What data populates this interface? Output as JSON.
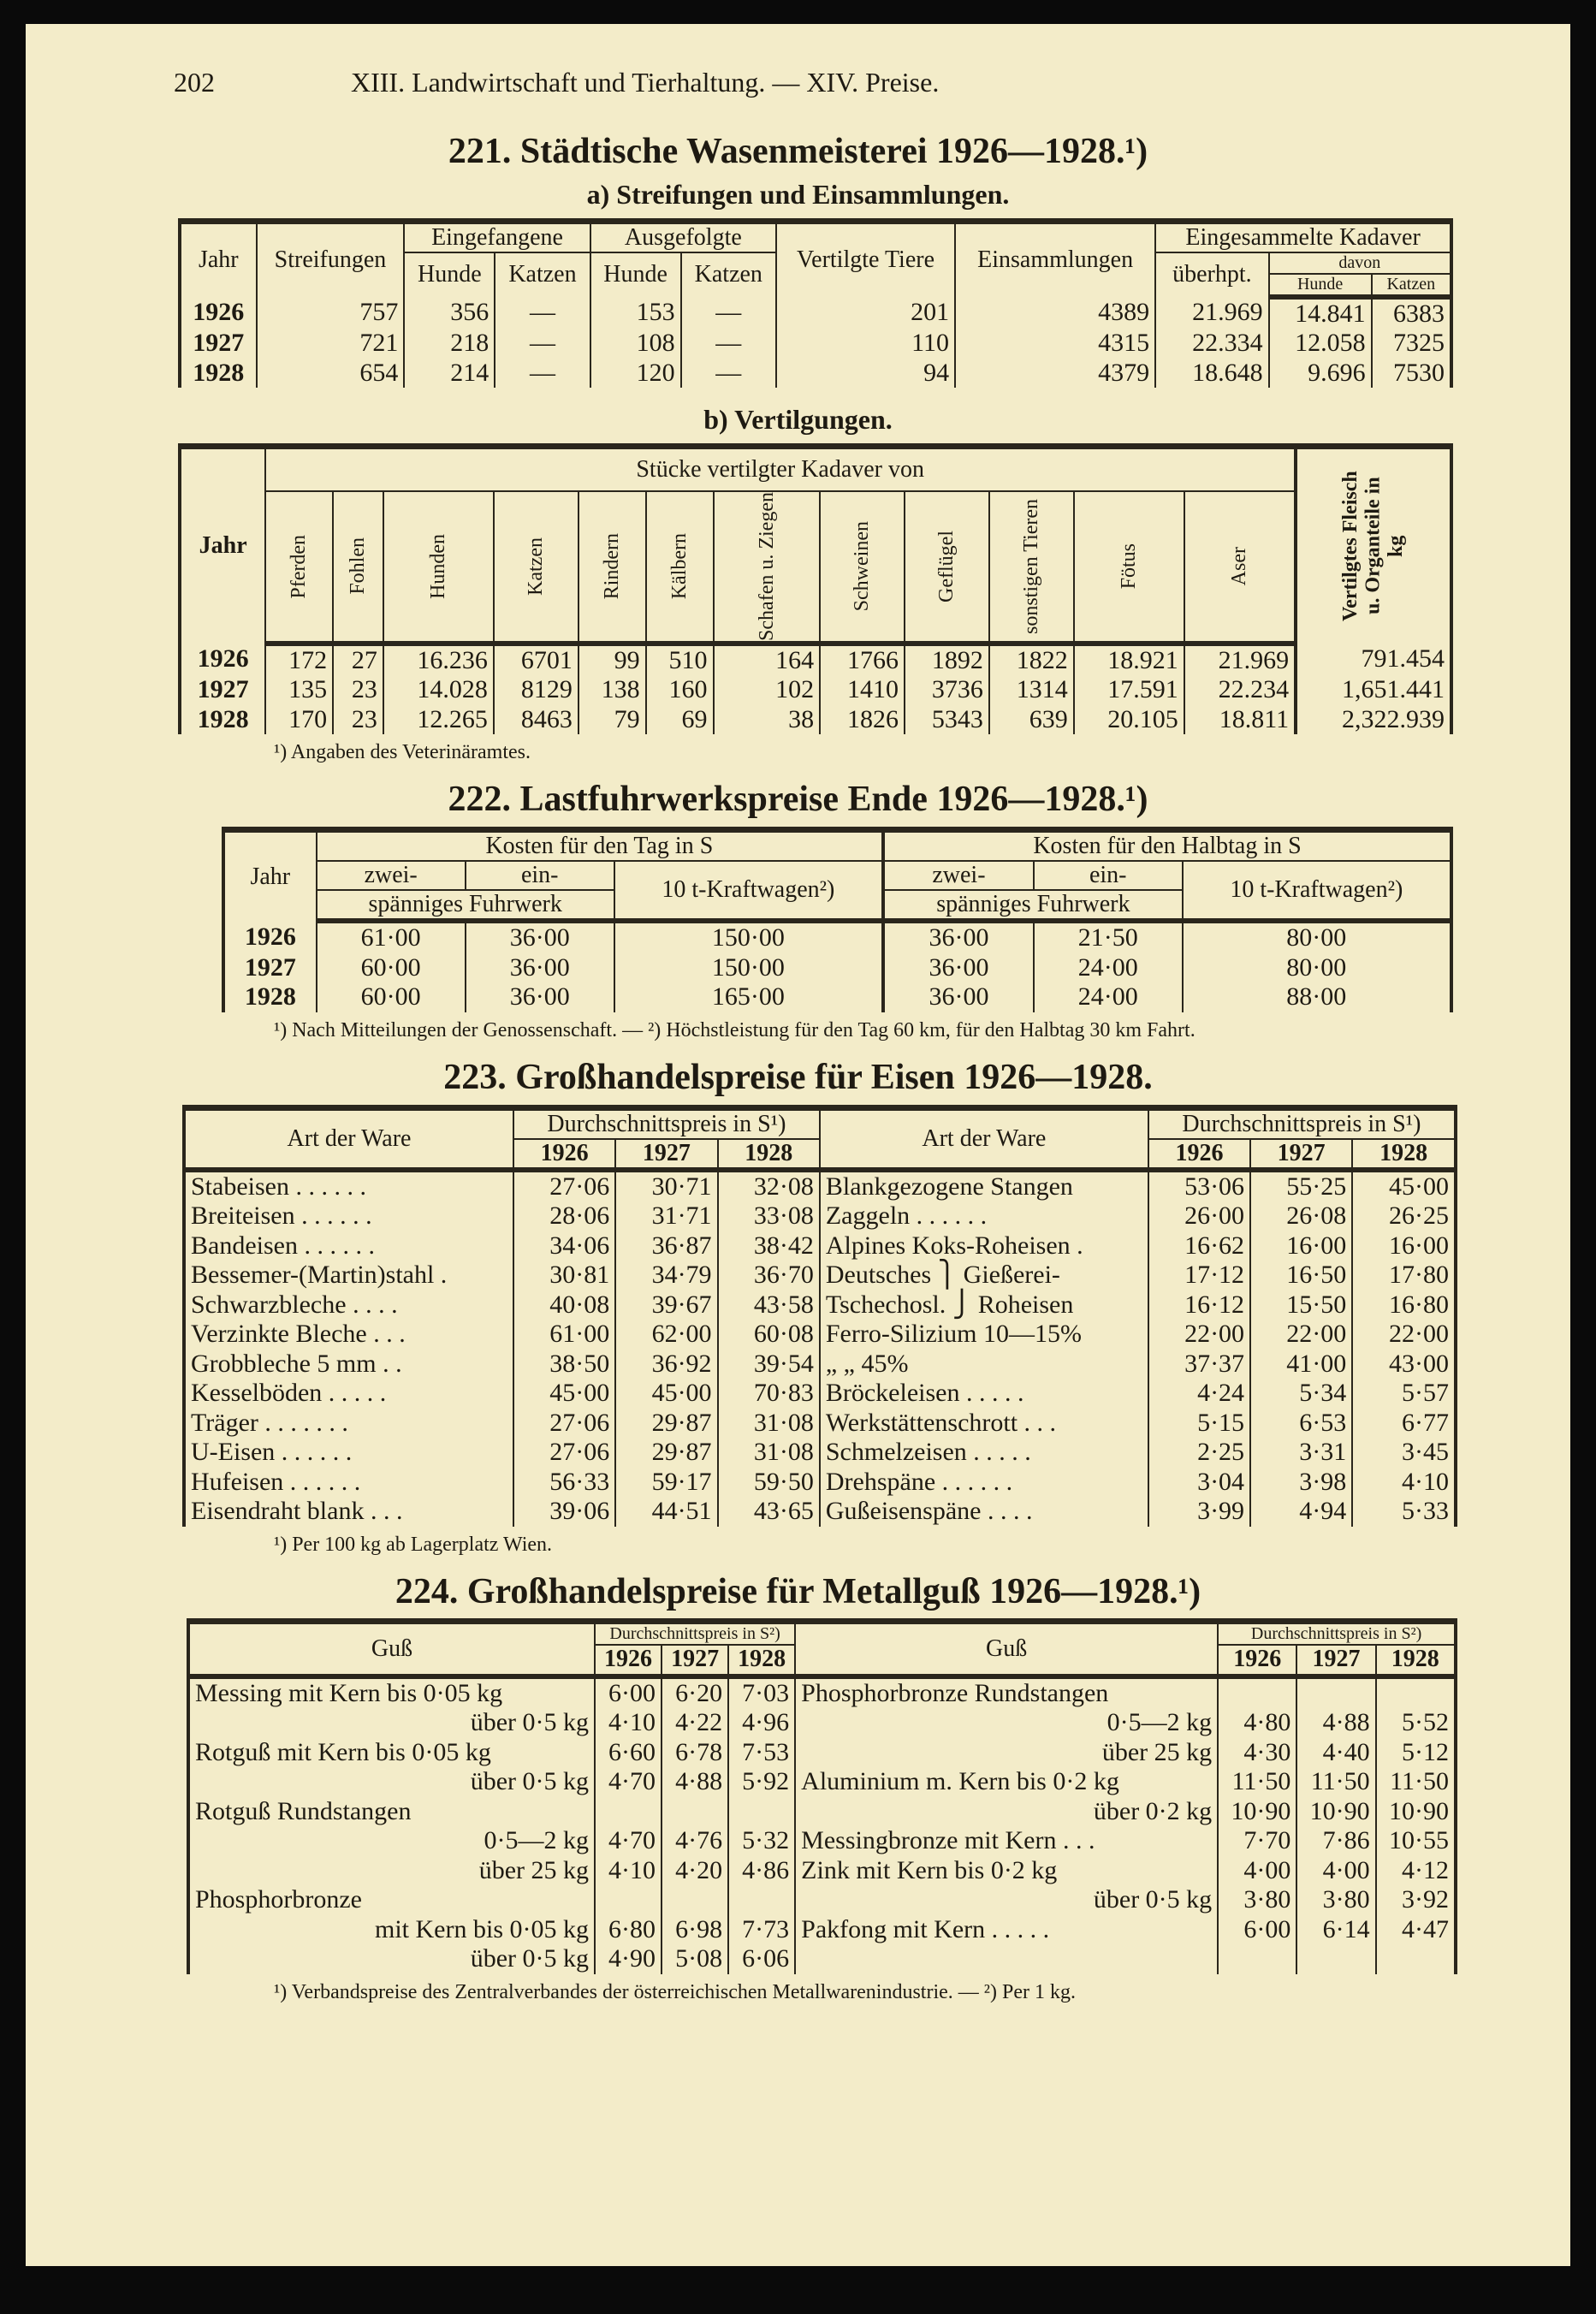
{
  "page_header": {
    "page_number": "202",
    "running_title": "XIII. Landwirtschaft und Tierhaltung. — XIV. Preise."
  },
  "t221": {
    "title": "221. Städtische Wasenmeisterei 1926—1928.¹)",
    "sub_a": "a) Streifungen und Einsammlungen.",
    "a_headers": {
      "jahr": "Jahr",
      "streifungen": "Streifungen",
      "eingefangene": "Eingefangene",
      "ausgefolgte": "Ausgefolgte",
      "hunde": "Hunde",
      "katzen": "Katzen",
      "vertilgte": "Vertilgte Tiere",
      "einsammlungen": "Einsammlungen",
      "eingesammelte": "Eingesammelte Kadaver",
      "ueberhpt": "überhpt.",
      "davon": "davon",
      "hunde_s": "Hunde",
      "katzen_s": "Katzen"
    },
    "a_rows": [
      [
        "1926",
        "757",
        "356",
        "—",
        "153",
        "—",
        "201",
        "4389",
        "21.969",
        "14.841",
        "6383"
      ],
      [
        "1927",
        "721",
        "218",
        "—",
        "108",
        "—",
        "110",
        "4315",
        "22.334",
        "12.058",
        "7325"
      ],
      [
        "1928",
        "654",
        "214",
        "—",
        "120",
        "—",
        "94",
        "4379",
        "18.648",
        "9.696",
        "7530"
      ]
    ],
    "sub_b": "b) Vertilgungen.",
    "b_headers": {
      "jahr": "Jahr",
      "group": "Stücke vertilgter Kadaver von",
      "last": "Vertilgtes Fleisch u. Organteile in kg",
      "cols": [
        "Pferden",
        "Fohlen",
        "Hunden",
        "Katzen",
        "Rindern",
        "Kälbern",
        "Schafen u. Ziegen",
        "Schweinen",
        "Geflügel",
        "sonstigen Tieren",
        "Fötus",
        "Aser"
      ]
    },
    "b_rows": [
      [
        "1926",
        "172",
        "27",
        "16.236",
        "6701",
        "99",
        "510",
        "164",
        "1766",
        "1892",
        "1822",
        "18.921",
        "21.969",
        "791.454"
      ],
      [
        "1927",
        "135",
        "23",
        "14.028",
        "8129",
        "138",
        "160",
        "102",
        "1410",
        "3736",
        "1314",
        "17.591",
        "22.234",
        "1,651.441"
      ],
      [
        "1928",
        "170",
        "23",
        "12.265",
        "8463",
        "79",
        "69",
        "38",
        "1826",
        "5343",
        "639",
        "20.105",
        "18.811",
        "2,322.939"
      ]
    ],
    "footnote": "¹) Angaben des Veterinäramtes."
  },
  "t222": {
    "title": "222. Lastfuhrwerkspreise Ende 1926—1928.¹)",
    "headers": {
      "jahr": "Jahr",
      "tag": "Kosten für den Tag in S",
      "halbtag": "Kosten für den Halbtag in S",
      "zwei": "zwei-",
      "ein": "ein-",
      "fuhrwerk": "spänniges Fuhrwerk",
      "kraft": "10 t-Kraftwagen²)"
    },
    "rows": [
      [
        "1926",
        "61·00",
        "36·00",
        "150·00",
        "36·00",
        "21·50",
        "80·00"
      ],
      [
        "1927",
        "60·00",
        "36·00",
        "150·00",
        "36·00",
        "24·00",
        "80·00"
      ],
      [
        "1928",
        "60·00",
        "36·00",
        "165·00",
        "36·00",
        "24·00",
        "88·00"
      ]
    ],
    "footnote": "¹) Nach Mitteilungen der Genossenschaft. — ²) Höchstleistung für den Tag 60 km, für den Halbtag 30 km Fahrt."
  },
  "t223": {
    "title": "223. Großhandelspreise für Eisen 1926—1928.",
    "headers": {
      "art": "Art der Ware",
      "preis": "Durchschnittspreis in S¹)",
      "years": [
        "1926",
        "1927",
        "1928"
      ]
    },
    "rows": [
      [
        "Stabeisen . . . . . .",
        "27·06",
        "30·71",
        "32·08",
        "Blankgezogene Stangen",
        "53·06",
        "55·25",
        "45·00"
      ],
      [
        "Breiteisen . . . . . .",
        "28·06",
        "31·71",
        "33·08",
        "Zaggeln . . . . . .",
        "26·00",
        "26·08",
        "26·25"
      ],
      [
        "Bandeisen . . . . . .",
        "34·06",
        "36·87",
        "38·42",
        "Alpines Koks-Roheisen .",
        "16·62",
        "16·00",
        "16·00"
      ],
      [
        "Bessemer-(Martin)stahl .",
        "30·81",
        "34·79",
        "36·70",
        "Deutsches ⎫ Gießerei-",
        "17·12",
        "16·50",
        "17·80"
      ],
      [
        "Schwarzbleche . . . .",
        "40·08",
        "39·67",
        "43·58",
        "Tschechosl. ⎭ Roheisen",
        "16·12",
        "15·50",
        "16·80"
      ],
      [
        "Verzinkte Bleche . . .",
        "61·00",
        "62·00",
        "60·08",
        "Ferro-Silizium 10—15%",
        "22·00",
        "22·00",
        "22·00"
      ],
      [
        "Grobbleche 5 mm . .",
        "38·50",
        "36·92",
        "39·54",
        "„ „ 45%",
        "37·37",
        "41·00",
        "43·00"
      ],
      [
        "Kesselböden . . . . .",
        "45·00",
        "45·00",
        "70·83",
        "Bröckeleisen . . . . .",
        "4·24",
        "5·34",
        "5·57"
      ],
      [
        "Träger . . . . . . .",
        "27·06",
        "29·87",
        "31·08",
        "Werkstättenschrott . . .",
        "5·15",
        "6·53",
        "6·77"
      ],
      [
        "U-Eisen . . . . . .",
        "27·06",
        "29·87",
        "31·08",
        "Schmelzeisen . . . . .",
        "2·25",
        "3·31",
        "3·45"
      ],
      [
        "Hufeisen . . . . . .",
        "56·33",
        "59·17",
        "59·50",
        "Drehspäne . . . . . .",
        "3·04",
        "3·98",
        "4·10"
      ],
      [
        "Eisendraht blank . . .",
        "39·06",
        "44·51",
        "43·65",
        "Gußeisenspäne . . . .",
        "3·99",
        "4·94",
        "5·33"
      ]
    ],
    "footnote": "¹) Per 100 kg ab Lagerplatz Wien."
  },
  "t224": {
    "title": "224. Großhandelspreise für Metallguß 1926—1928.¹)",
    "headers": {
      "guss": "Guß",
      "preis": "Durchschnittspreis in S²)",
      "years": [
        "1926",
        "1927",
        "1928"
      ]
    },
    "rows": [
      [
        "Messing mit Kern bis 0·05 kg",
        "6·00",
        "6·20",
        "7·03",
        "Phosphorbronze Rundstangen",
        "",
        "",
        ""
      ],
      [
        "über 0·5 kg",
        "4·10",
        "4·22",
        "4·96",
        "0·5—2 kg",
        "4·80",
        "4·88",
        "5·52"
      ],
      [
        "Rotguß mit Kern bis 0·05 kg",
        "6·60",
        "6·78",
        "7·53",
        "über 25 kg",
        "4·30",
        "4·40",
        "5·12"
      ],
      [
        "über 0·5 kg",
        "4·70",
        "4·88",
        "5·92",
        "Aluminium m. Kern bis 0·2 kg",
        "11·50",
        "11·50",
        "11·50"
      ],
      [
        "Rotguß Rundstangen",
        "",
        "",
        "",
        "über 0·2 kg",
        "10·90",
        "10·90",
        "10·90"
      ],
      [
        "0·5—2 kg",
        "4·70",
        "4·76",
        "5·32",
        "Messingbronze mit Kern . . .",
        "7·70",
        "7·86",
        "10·55"
      ],
      [
        "über 25 kg",
        "4·10",
        "4·20",
        "4·86",
        "Zink mit Kern bis 0·2 kg",
        "4·00",
        "4·00",
        "4·12"
      ],
      [
        "Phosphorbronze",
        "",
        "",
        "",
        "über 0·5 kg",
        "3·80",
        "3·80",
        "3·92"
      ],
      [
        "mit Kern bis 0·05 kg",
        "6·80",
        "6·98",
        "7·73",
        "Pakfong mit Kern . . . . .",
        "6·00",
        "6·14",
        "4·47"
      ],
      [
        "über 0·5 kg",
        "4·90",
        "5·08",
        "6·06",
        "",
        "",
        "",
        ""
      ]
    ],
    "footnote": "¹) Verbandspreise des Zentralverbandes der österreichischen Metallwarenindustrie. — ²) Per 1 kg."
  }
}
